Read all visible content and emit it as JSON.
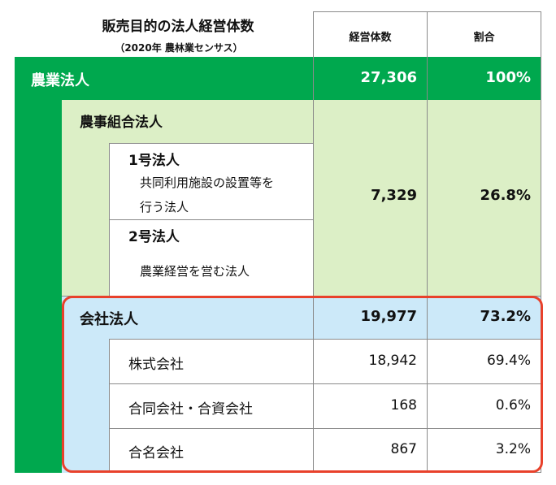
{
  "title": "販売目的の法人経営体数",
  "subtitle": "（2020年 農林業センサス）",
  "headers": {
    "count": "経営体数",
    "ratio": "割合"
  },
  "colors": {
    "green": "#00a84e",
    "light_green": "#dcefc6",
    "light_blue": "#cce9f9",
    "highlight": "#e8412b"
  },
  "rows": {
    "nogyo": {
      "label": "農業法人",
      "count": "27,306",
      "ratio": "100%"
    },
    "nojikumiai": {
      "label": "農事組合法人",
      "count": "7,329",
      "ratio": "26.8%"
    },
    "go1": {
      "label": "1号法人",
      "desc_line1": "共同利用施設の設置等を",
      "desc_line2": "行う法人"
    },
    "go2": {
      "label": "2号法人",
      "desc": "農業経営を営む法人"
    },
    "kaisha": {
      "label": "会社法人",
      "count": "19,977",
      "ratio": "73.2%"
    },
    "kabushiki": {
      "label": "株式会社",
      "count": "18,942",
      "ratio": "69.4%"
    },
    "godo": {
      "label": "合同会社・合資会社",
      "count": "168",
      "ratio": "0.6%"
    },
    "gomei": {
      "label": "合名会社",
      "count": "867",
      "ratio": "3.2%"
    }
  }
}
